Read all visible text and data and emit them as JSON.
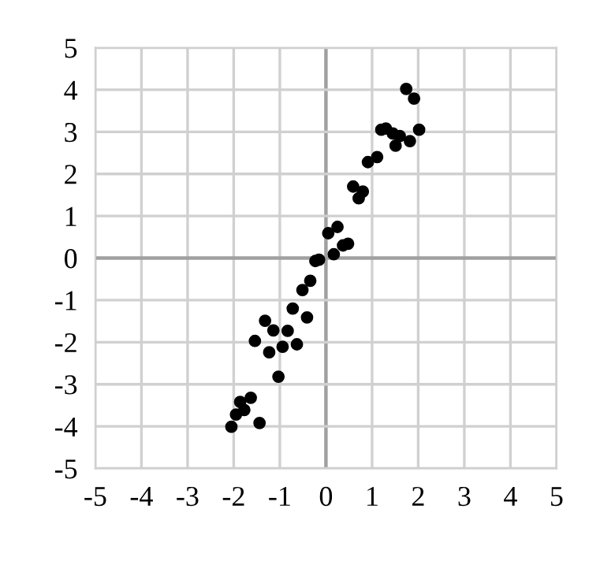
{
  "chart_data": {
    "type": "scatter",
    "color": "#000000",
    "marker": "circle",
    "grid": true,
    "x": [
      1.74,
      1.91,
      1.2,
      1.3,
      1.45,
      1.6,
      1.51,
      1.82,
      2.02,
      0.91,
      1.11,
      0.59,
      0.8,
      0.71,
      0.05,
      0.25,
      0.48,
      0.37,
      0.17,
      -0.15,
      -0.23,
      -0.34,
      -0.51,
      -0.72,
      -0.41,
      -1.32,
      -1.14,
      -0.83,
      -1.54,
      -1.23,
      -0.94,
      -0.63,
      -1.03,
      -1.63,
      -1.86,
      -1.77,
      -1.95,
      -2.05,
      -1.44
    ],
    "values": [
      4.02,
      3.79,
      3.05,
      3.08,
      2.96,
      2.9,
      2.67,
      2.78,
      3.05,
      2.28,
      2.4,
      1.7,
      1.58,
      1.42,
      0.59,
      0.74,
      0.34,
      0.3,
      0.09,
      -0.04,
      -0.07,
      -0.54,
      -0.76,
      -1.2,
      -1.41,
      -1.49,
      -1.72,
      -1.73,
      -1.97,
      -2.24,
      -2.11,
      -2.05,
      -2.82,
      -3.32,
      -3.42,
      -3.61,
      -3.72,
      -4.01,
      -3.92
    ],
    "xlim": [
      -5,
      5
    ],
    "ylim": [
      -5,
      5
    ],
    "xticks": [
      -5,
      -4,
      -3,
      -2,
      -1,
      0,
      1,
      2,
      3,
      4,
      5
    ],
    "yticks": [
      -5,
      -4,
      -3,
      -2,
      -1,
      0,
      1,
      2,
      3,
      4,
      5
    ]
  }
}
